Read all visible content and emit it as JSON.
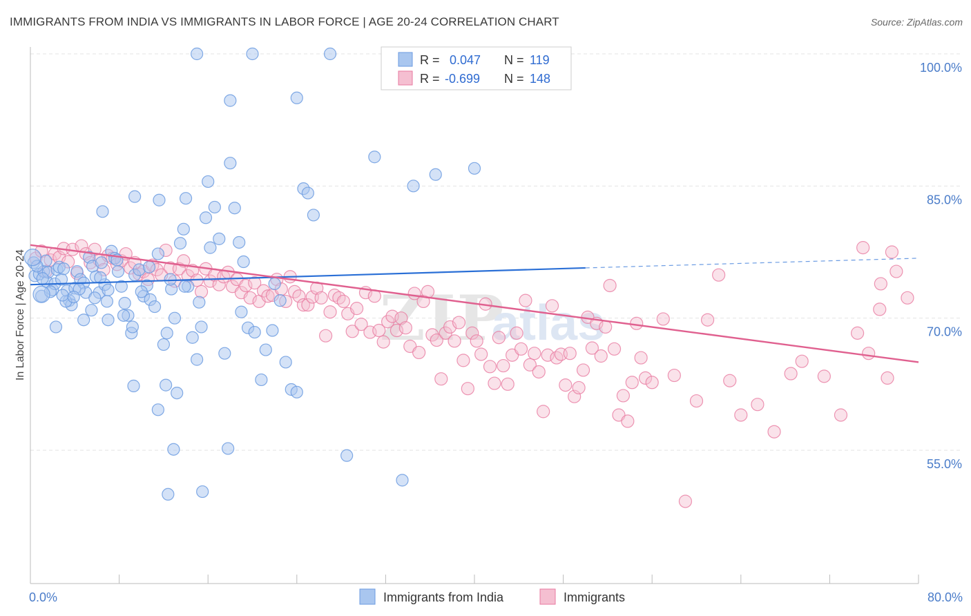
{
  "title": "IMMIGRANTS FROM INDIA VS IMMIGRANTS IN LABOR FORCE | AGE 20-24 CORRELATION CHART",
  "source": "Source: ZipAtlas.com",
  "colors": {
    "blue": "#6b9be0",
    "blue_fill": "#a9c6ef",
    "pink": "#e87aa0",
    "pink_fill": "#f5bfd1",
    "blue_line": "#2a6fd6",
    "pink_line": "#e0608f"
  },
  "legend": {
    "rows": [
      {
        "r_label": "R =",
        "r_value": "0.047",
        "n_label": "N =",
        "n_value": "119"
      },
      {
        "r_label": "R =",
        "r_value": "-0.699",
        "n_label": "N =",
        "n_value": "148"
      }
    ]
  },
  "bottom_legend": [
    "Immigrants from India",
    "Immigrants"
  ],
  "chart_data": {
    "type": "scatter",
    "ylabel": "In Labor Force | Age 20-24",
    "x_tick_labels": [
      "0.0%",
      "80.0%"
    ],
    "y_tick_labels": [
      "100.0%",
      "85.0%",
      "70.0%",
      "55.0%"
    ],
    "xlim": [
      0,
      80
    ],
    "ylim": [
      40,
      102
    ],
    "y_ticks": [
      100,
      85,
      70,
      55
    ],
    "grid": true,
    "legend_position": "top-center",
    "watermark": "ZIPatlas",
    "series": [
      {
        "name": "Immigrants from India",
        "color": "#6b9be0",
        "trend": {
          "x": [
            0,
            50
          ],
          "y": [
            73.8,
            75.7
          ],
          "dash_x": [
            50,
            80
          ],
          "dash_y": [
            75.7,
            76.8
          ]
        },
        "points": [
          [
            0.3,
            76.3
          ],
          [
            0.4,
            74.8
          ],
          [
            0.8,
            75.0
          ],
          [
            1.0,
            72.5
          ],
          [
            1.2,
            75.3
          ],
          [
            1.5,
            74.1
          ],
          [
            1.6,
            75.2
          ],
          [
            2.0,
            73.2
          ],
          [
            2.2,
            73.9
          ],
          [
            2.4,
            75.5
          ],
          [
            2.6,
            75.8
          ],
          [
            2.8,
            74.4
          ],
          [
            3.0,
            75.6
          ],
          [
            3.3,
            73.1
          ],
          [
            3.5,
            72.0
          ],
          [
            3.7,
            71.5
          ],
          [
            4.0,
            73.4
          ],
          [
            4.2,
            75.3
          ],
          [
            4.5,
            74.4
          ],
          [
            4.8,
            74.0
          ],
          [
            5.0,
            72.9
          ],
          [
            5.3,
            76.9
          ],
          [
            5.6,
            75.9
          ],
          [
            5.9,
            74.7
          ],
          [
            6.2,
            72.9
          ],
          [
            6.4,
            76.3
          ],
          [
            6.7,
            73.8
          ],
          [
            7.0,
            73.2
          ],
          [
            7.3,
            77.6
          ],
          [
            7.6,
            76.8
          ],
          [
            7.9,
            75.3
          ],
          [
            8.2,
            73.6
          ],
          [
            8.5,
            71.7
          ],
          [
            8.8,
            70.3
          ],
          [
            9.1,
            68.3
          ],
          [
            9.4,
            74.9
          ],
          [
            9.8,
            75.5
          ],
          [
            10.2,
            72.5
          ],
          [
            10.5,
            73.7
          ],
          [
            10.8,
            72.1
          ],
          [
            11.2,
            71.3
          ],
          [
            11.5,
            77.3
          ],
          [
            12.0,
            67.0
          ],
          [
            12.3,
            68.3
          ],
          [
            12.7,
            73.3
          ],
          [
            13.0,
            70.0
          ],
          [
            13.5,
            78.5
          ],
          [
            13.8,
            80.1
          ],
          [
            14.2,
            73.6
          ],
          [
            14.6,
            67.8
          ],
          [
            15.0,
            65.3
          ],
          [
            15.4,
            69.0
          ],
          [
            15.8,
            81.4
          ],
          [
            16.2,
            78.0
          ],
          [
            16.6,
            82.6
          ],
          [
            17.0,
            79.0
          ],
          [
            17.5,
            66.0
          ],
          [
            18.0,
            87.6
          ],
          [
            18.4,
            82.5
          ],
          [
            18.8,
            78.6
          ],
          [
            19.2,
            76.4
          ],
          [
            19.6,
            68.9
          ],
          [
            20.2,
            68.4
          ],
          [
            20.8,
            63.0
          ],
          [
            21.2,
            66.4
          ],
          [
            21.8,
            68.6
          ],
          [
            22.5,
            72.0
          ],
          [
            23.0,
            65.0
          ],
          [
            23.5,
            61.9
          ],
          [
            24.0,
            61.6
          ],
          [
            24.6,
            84.7
          ],
          [
            25.0,
            84.2
          ],
          [
            25.5,
            81.7
          ],
          [
            14.0,
            83.6
          ],
          [
            16.0,
            85.5
          ],
          [
            12.2,
            62.4
          ],
          [
            13.2,
            61.5
          ],
          [
            11.5,
            59.6
          ],
          [
            9.3,
            62.3
          ],
          [
            12.9,
            55.1
          ],
          [
            17.8,
            55.2
          ],
          [
            28.5,
            54.4
          ],
          [
            33.5,
            51.6
          ],
          [
            15.5,
            50.3
          ],
          [
            12.4,
            50.0
          ],
          [
            15.0,
            100.0
          ],
          [
            20.0,
            100.0
          ],
          [
            27.0,
            100.0
          ],
          [
            18.0,
            94.7
          ],
          [
            24.0,
            95.0
          ],
          [
            31.0,
            88.3
          ],
          [
            34.5,
            85.0
          ],
          [
            36.5,
            86.3
          ],
          [
            40.0,
            87.0
          ],
          [
            6.5,
            82.1
          ],
          [
            11.6,
            83.4
          ],
          [
            9.4,
            83.8
          ],
          [
            7.0,
            69.8
          ],
          [
            9.2,
            69.0
          ],
          [
            4.8,
            69.8
          ],
          [
            2.3,
            69.0
          ],
          [
            3.2,
            71.9
          ],
          [
            5.5,
            70.9
          ],
          [
            8.4,
            70.3
          ],
          [
            6.3,
            74.6
          ],
          [
            4.4,
            73.3
          ],
          [
            1.8,
            73.0
          ],
          [
            2.9,
            72.6
          ],
          [
            1.4,
            76.5
          ],
          [
            0.6,
            75.9
          ],
          [
            1.1,
            74.5
          ],
          [
            10.7,
            75.8
          ],
          [
            12.6,
            74.4
          ],
          [
            13.9,
            73.6
          ],
          [
            15.2,
            71.8
          ],
          [
            19.0,
            70.7
          ],
          [
            22.0,
            73.9
          ],
          [
            7.8,
            76.6
          ],
          [
            3.9,
            72.4
          ],
          [
            6.9,
            71.9
          ],
          [
            10.0,
            73.0
          ],
          [
            5.8,
            72.3
          ]
        ],
        "big_points": [
          [
            0.2,
            76.9
          ],
          [
            1.0,
            72.7
          ]
        ]
      },
      {
        "name": "Immigrants",
        "color": "#e87aa0",
        "trend": {
          "x": [
            0,
            80
          ],
          "y": [
            78.3,
            65.0
          ]
        },
        "points": [
          [
            0.5,
            76.8
          ],
          [
            1.0,
            77.6
          ],
          [
            1.4,
            75.3
          ],
          [
            1.8,
            76.6
          ],
          [
            2.2,
            77.3
          ],
          [
            2.6,
            76.9
          ],
          [
            3.0,
            77.9
          ],
          [
            3.4,
            76.4
          ],
          [
            3.8,
            77.8
          ],
          [
            4.2,
            75.1
          ],
          [
            4.6,
            78.2
          ],
          [
            5.0,
            77.3
          ],
          [
            5.4,
            76.3
          ],
          [
            5.8,
            77.8
          ],
          [
            6.2,
            76.6
          ],
          [
            6.6,
            75.5
          ],
          [
            7.0,
            77.1
          ],
          [
            7.4,
            76.8
          ],
          [
            7.8,
            76.1
          ],
          [
            8.2,
            76.5
          ],
          [
            8.6,
            77.3
          ],
          [
            9.0,
            75.7
          ],
          [
            9.4,
            76.3
          ],
          [
            9.8,
            75.0
          ],
          [
            10.2,
            75.3
          ],
          [
            10.6,
            74.4
          ],
          [
            11.0,
            76.0
          ],
          [
            11.4,
            75.5
          ],
          [
            11.8,
            74.9
          ],
          [
            12.2,
            77.7
          ],
          [
            12.6,
            75.7
          ],
          [
            13.0,
            74.2
          ],
          [
            13.4,
            75.6
          ],
          [
            13.8,
            76.5
          ],
          [
            14.2,
            74.8
          ],
          [
            14.6,
            75.4
          ],
          [
            15.0,
            74.3
          ],
          [
            15.4,
            73.0
          ],
          [
            15.8,
            75.6
          ],
          [
            16.2,
            74.2
          ],
          [
            16.6,
            74.9
          ],
          [
            17.0,
            73.8
          ],
          [
            17.4,
            74.7
          ],
          [
            17.8,
            75.2
          ],
          [
            18.2,
            73.6
          ],
          [
            18.6,
            74.4
          ],
          [
            19.0,
            72.9
          ],
          [
            19.4,
            73.7
          ],
          [
            19.8,
            72.3
          ],
          [
            20.2,
            74.0
          ],
          [
            20.6,
            71.9
          ],
          [
            21.0,
            73.1
          ],
          [
            21.4,
            72.5
          ],
          [
            21.8,
            72.6
          ],
          [
            22.2,
            74.4
          ],
          [
            22.6,
            73.3
          ],
          [
            23.0,
            71.9
          ],
          [
            23.4,
            74.7
          ],
          [
            23.8,
            73.0
          ],
          [
            24.2,
            72.5
          ],
          [
            24.6,
            71.5
          ],
          [
            25.0,
            71.5
          ],
          [
            25.4,
            72.4
          ],
          [
            25.8,
            73.4
          ],
          [
            26.2,
            72.3
          ],
          [
            26.6,
            68.0
          ],
          [
            27.0,
            70.7
          ],
          [
            27.4,
            72.6
          ],
          [
            27.8,
            72.3
          ],
          [
            28.2,
            71.9
          ],
          [
            28.6,
            70.5
          ],
          [
            29.0,
            68.5
          ],
          [
            29.4,
            71.1
          ],
          [
            29.8,
            69.3
          ],
          [
            30.2,
            72.9
          ],
          [
            30.6,
            68.4
          ],
          [
            31.0,
            72.5
          ],
          [
            31.4,
            68.6
          ],
          [
            31.8,
            67.3
          ],
          [
            32.2,
            69.6
          ],
          [
            32.6,
            70.2
          ],
          [
            33.0,
            68.6
          ],
          [
            33.4,
            70.0
          ],
          [
            33.8,
            68.9
          ],
          [
            34.2,
            66.8
          ],
          [
            34.6,
            72.8
          ],
          [
            35.0,
            66.1
          ],
          [
            35.4,
            71.9
          ],
          [
            35.8,
            73.0
          ],
          [
            36.2,
            68.1
          ],
          [
            36.6,
            67.5
          ],
          [
            37.0,
            63.1
          ],
          [
            37.4,
            68.3
          ],
          [
            37.8,
            69.0
          ],
          [
            38.2,
            67.4
          ],
          [
            38.6,
            69.5
          ],
          [
            39.0,
            65.2
          ],
          [
            39.4,
            62.0
          ],
          [
            39.8,
            68.3
          ],
          [
            40.2,
            67.4
          ],
          [
            40.6,
            65.9
          ],
          [
            41.0,
            71.6
          ],
          [
            41.4,
            64.5
          ],
          [
            41.8,
            62.6
          ],
          [
            42.2,
            67.8
          ],
          [
            42.6,
            64.6
          ],
          [
            43.0,
            62.5
          ],
          [
            43.4,
            65.8
          ],
          [
            43.8,
            68.3
          ],
          [
            44.2,
            66.5
          ],
          [
            44.6,
            72.0
          ],
          [
            45.0,
            64.7
          ],
          [
            45.4,
            66.0
          ],
          [
            45.8,
            63.9
          ],
          [
            46.2,
            59.4
          ],
          [
            46.6,
            65.8
          ],
          [
            47.0,
            71.4
          ],
          [
            47.4,
            65.5
          ],
          [
            47.8,
            65.9
          ],
          [
            48.2,
            62.4
          ],
          [
            48.6,
            66.0
          ],
          [
            49.0,
            61.1
          ],
          [
            49.4,
            62.1
          ],
          [
            49.8,
            64.1
          ],
          [
            50.2,
            70.1
          ],
          [
            50.6,
            66.6
          ],
          [
            51.0,
            69.4
          ],
          [
            51.4,
            65.7
          ],
          [
            51.8,
            69.0
          ],
          [
            52.2,
            73.7
          ],
          [
            52.6,
            66.5
          ],
          [
            53.0,
            59.0
          ],
          [
            53.4,
            61.2
          ],
          [
            53.8,
            58.3
          ],
          [
            54.2,
            62.7
          ],
          [
            54.6,
            69.4
          ],
          [
            55.0,
            65.5
          ],
          [
            55.4,
            63.2
          ],
          [
            56.0,
            62.7
          ],
          [
            57.0,
            69.9
          ],
          [
            58.0,
            63.5
          ],
          [
            59.0,
            49.2
          ],
          [
            60.0,
            60.6
          ],
          [
            61.0,
            69.8
          ],
          [
            62.0,
            74.9
          ],
          [
            63.0,
            62.9
          ],
          [
            64.0,
            59.0
          ],
          [
            65.5,
            60.2
          ],
          [
            67.0,
            57.1
          ],
          [
            68.5,
            63.7
          ],
          [
            69.5,
            65.1
          ],
          [
            71.5,
            63.4
          ],
          [
            73.0,
            59.0
          ],
          [
            74.5,
            68.3
          ],
          [
            75.5,
            66.0
          ],
          [
            76.5,
            71.0
          ],
          [
            77.2,
            63.2
          ],
          [
            78.0,
            75.3
          ],
          [
            79.0,
            72.3
          ],
          [
            75.0,
            78.0
          ],
          [
            76.6,
            73.9
          ],
          [
            77.6,
            77.5
          ]
        ]
      }
    ]
  }
}
